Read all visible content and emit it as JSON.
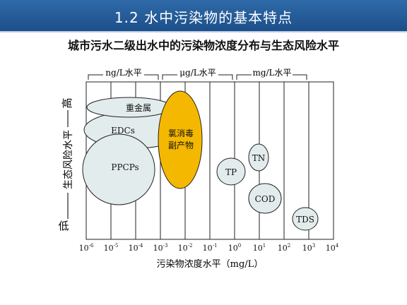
{
  "slide": {
    "title": "1.2 水中污染物的基本特点",
    "subtitle": "城市污水二级出水中的污染物浓度分布与生态风险水平"
  },
  "diagram": {
    "range_brackets": [
      "ng/L水平",
      "μg/L水平",
      "mg/L水平"
    ],
    "y_axis": {
      "low": "低",
      "middle": "生态风险水平",
      "high": "高"
    },
    "x_axis_label": "污染物浓度水平（mg/L）",
    "x_ticks": [
      {
        "base": "10",
        "exp": "-6"
      },
      {
        "base": "10",
        "exp": "-5"
      },
      {
        "base": "10",
        "exp": "-4"
      },
      {
        "base": "10",
        "exp": "-3"
      },
      {
        "base": "10",
        "exp": "-2"
      },
      {
        "base": "10",
        "exp": "-1"
      },
      {
        "base": "10",
        "exp": "0"
      },
      {
        "base": "10",
        "exp": "1"
      },
      {
        "base": "10",
        "exp": "2"
      },
      {
        "base": "10",
        "exp": "3"
      },
      {
        "base": "10",
        "exp": "4"
      }
    ],
    "pollutants": [
      {
        "id": "heavy-metals",
        "label": "重金属"
      },
      {
        "id": "edcs",
        "label": "EDCs"
      },
      {
        "id": "ppcps",
        "label": "PPCPs"
      },
      {
        "id": "chlorination-dbps",
        "label_lines": [
          "氯消毒",
          "副产物"
        ],
        "fill": "#f5b800"
      },
      {
        "id": "tp",
        "label": "TP"
      },
      {
        "id": "tn",
        "label": "TN"
      },
      {
        "id": "cod",
        "label": "COD"
      },
      {
        "id": "tds",
        "label": "TDS"
      }
    ],
    "colors": {
      "bubble_fill": "#e3ecec",
      "highlight_fill": "#f5b800"
    }
  }
}
